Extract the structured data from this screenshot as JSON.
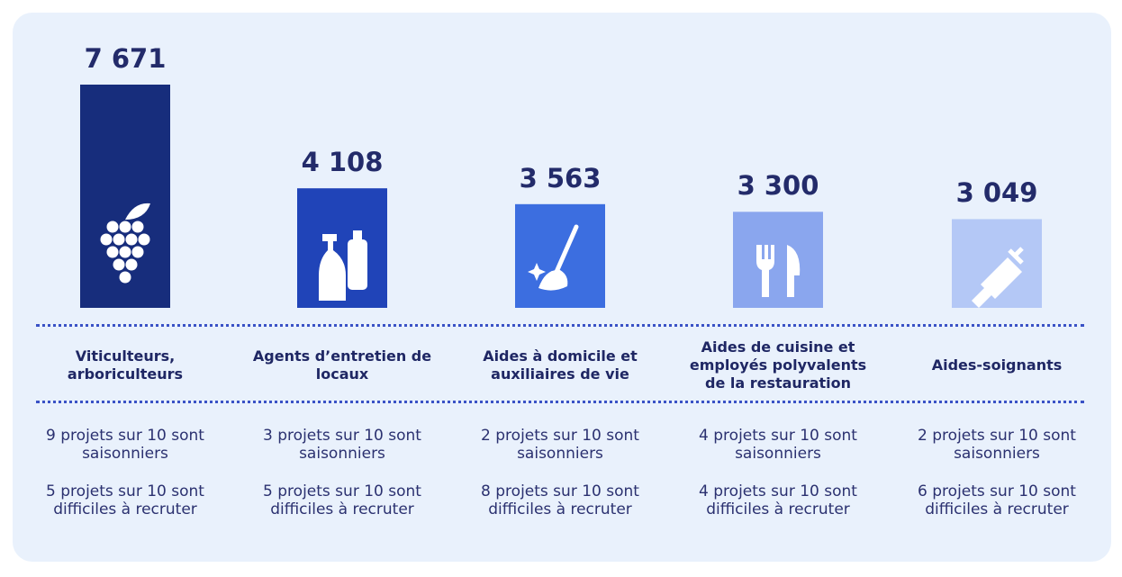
{
  "chart_data": {
    "type": "bar",
    "categories": [
      "Viticulteurs, arboriculteurs",
      "Agents d’entretien de locaux",
      "Aides à domicile et auxiliaires de vie",
      "Aides de cuisine et employés polyvalents de la restauration",
      "Aides-soignants"
    ],
    "values": [
      7671,
      4108,
      3563,
      3300,
      3049
    ],
    "value_labels": [
      "7 671",
      "4 108",
      "3 563",
      "3 300",
      "3 049"
    ],
    "colors": [
      "#172d7c",
      "#2044b8",
      "#3c6ee0",
      "#8aa6ee",
      "#b4c8f6"
    ],
    "seasonal": [
      "9 projets sur 10 sont saisonniers",
      "3 projets sur 10 sont saisonniers",
      "2 projets sur 10 sont saisonniers",
      "4 projets sur 10 sont saisonniers",
      "2 projets sur 10 sont saisonniers"
    ],
    "difficult": [
      "5 projets sur 10 sont difficiles à recruter",
      "5 projets sur 10 sont difficiles à recruter",
      "8 projets sur 10 sont difficiles à recruter",
      "4 projets sur 10 sont difficiles à recruter",
      "6 projets sur 10 sont difficiles à recruter"
    ]
  }
}
